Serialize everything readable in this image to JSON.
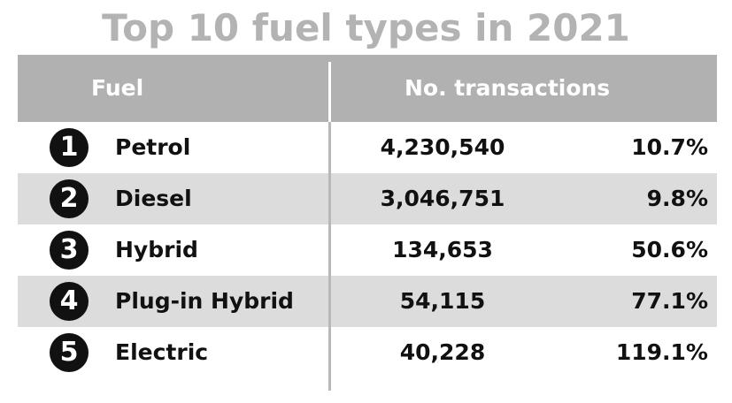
{
  "chart_data": {
    "type": "table",
    "title": "Top 10 fuel types in 2021",
    "columns": [
      "Fuel",
      "No. transactions"
    ],
    "rows": [
      {
        "rank": "1",
        "fuel": "Petrol",
        "transactions": "4,230,540",
        "percent": "10.7%"
      },
      {
        "rank": "2",
        "fuel": "Diesel",
        "transactions": "3,046,751",
        "percent": "9.8%"
      },
      {
        "rank": "3",
        "fuel": "Hybrid",
        "transactions": "134,653",
        "percent": "50.6%"
      },
      {
        "rank": "4",
        "fuel": "Plug-in Hybrid",
        "transactions": "54,115",
        "percent": "77.1%"
      },
      {
        "rank": "5",
        "fuel": "Electric",
        "transactions": "40,228",
        "percent": "119.1%"
      }
    ]
  },
  "colors": {
    "title": "#b3b3b3",
    "header_bg": "#b1b1b1",
    "shaded_row": "#dcdcdc",
    "text": "#111111"
  }
}
